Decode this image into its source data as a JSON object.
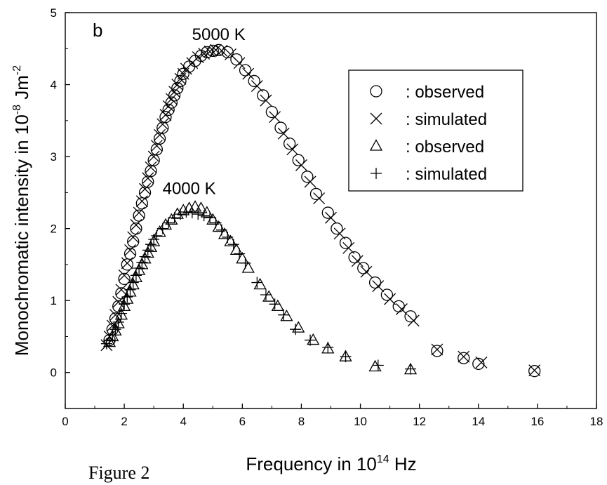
{
  "chart_data": {
    "type": "scatter",
    "panel_label": "b",
    "caption": "Figure 2",
    "xlabel": {
      "text": "Frequency in 10",
      "sup": "14",
      "tail": " Hz"
    },
    "ylabel": {
      "text": "Monochromatic intensity in 10",
      "sup": "-8",
      "tail": " Jm",
      "sup2": "-2"
    },
    "xlim": [
      0,
      18
    ],
    "ylim": [
      -0.5,
      5
    ],
    "xticks": [
      0,
      2,
      4,
      6,
      8,
      10,
      12,
      14,
      16,
      18
    ],
    "yticks": [
      0,
      1,
      2,
      3,
      4,
      5
    ],
    "grid": false,
    "legend_position": "top-right",
    "annotations": [
      {
        "text": "5000 K",
        "x": 5.2,
        "y": 4.62
      },
      {
        "text": "4000 K",
        "x": 4.2,
        "y": 2.48
      }
    ],
    "series": [
      {
        "name": ": observed",
        "marker": "circle",
        "x": [
          1.5,
          1.6,
          1.7,
          1.8,
          1.9,
          2.0,
          2.1,
          2.2,
          2.3,
          2.4,
          2.5,
          2.6,
          2.7,
          2.8,
          2.9,
          3.0,
          3.1,
          3.2,
          3.3,
          3.4,
          3.5,
          3.6,
          3.7,
          3.8,
          3.9,
          4.0,
          4.2,
          4.4,
          4.6,
          4.8,
          5.0,
          5.2,
          5.5,
          5.8,
          6.1,
          6.4,
          6.7,
          7.0,
          7.3,
          7.6,
          7.9,
          8.2,
          8.5,
          8.9,
          9.2,
          9.5,
          9.8,
          10.1,
          10.5,
          10.9,
          11.3,
          11.7,
          12.6,
          13.5,
          14.0,
          15.9
        ],
        "y": [
          0.45,
          0.6,
          0.75,
          0.92,
          1.1,
          1.3,
          1.5,
          1.65,
          1.82,
          2.0,
          2.18,
          2.35,
          2.5,
          2.65,
          2.8,
          2.95,
          3.1,
          3.25,
          3.4,
          3.55,
          3.65,
          3.75,
          3.85,
          3.95,
          4.05,
          4.15,
          4.25,
          4.33,
          4.4,
          4.45,
          4.47,
          4.48,
          4.45,
          4.35,
          4.2,
          4.05,
          3.85,
          3.62,
          3.4,
          3.18,
          2.95,
          2.72,
          2.48,
          2.22,
          2.0,
          1.8,
          1.6,
          1.45,
          1.25,
          1.08,
          0.92,
          0.78,
          0.3,
          0.2,
          0.12,
          0.02
        ]
      },
      {
        "name": ": simulated",
        "marker": "cross",
        "x": [
          1.4,
          1.5,
          1.6,
          1.7,
          1.8,
          1.9,
          2.0,
          2.1,
          2.2,
          2.3,
          2.4,
          2.5,
          2.6,
          2.7,
          2.8,
          2.9,
          3.0,
          3.1,
          3.2,
          3.3,
          3.4,
          3.5,
          3.6,
          3.7,
          3.8,
          3.9,
          4.0,
          4.1,
          4.3,
          4.5,
          4.7,
          4.9,
          5.1,
          5.3,
          5.6,
          5.9,
          6.2,
          6.5,
          6.8,
          7.1,
          7.4,
          7.7,
          8.0,
          8.3,
          8.6,
          9.0,
          9.3,
          9.6,
          9.9,
          10.2,
          10.6,
          11.0,
          11.4,
          11.8,
          12.6,
          13.5,
          14.1,
          15.9
        ],
        "y": [
          0.38,
          0.5,
          0.65,
          0.8,
          0.98,
          1.15,
          1.35,
          1.52,
          1.7,
          1.88,
          2.05,
          2.22,
          2.38,
          2.55,
          2.7,
          2.85,
          3.0,
          3.15,
          3.3,
          3.45,
          3.58,
          3.7,
          3.8,
          3.9,
          4.0,
          4.08,
          4.15,
          4.22,
          4.3,
          4.38,
          4.43,
          4.46,
          4.48,
          4.47,
          4.42,
          4.3,
          4.15,
          3.98,
          3.78,
          3.55,
          3.32,
          3.1,
          2.88,
          2.65,
          2.42,
          2.15,
          1.93,
          1.73,
          1.55,
          1.4,
          1.2,
          1.02,
          0.88,
          0.72,
          0.32,
          0.22,
          0.14,
          0.03
        ]
      },
      {
        "name": ": observed",
        "marker": "triangle",
        "x": [
          1.5,
          1.6,
          1.7,
          1.8,
          1.9,
          2.0,
          2.1,
          2.2,
          2.3,
          2.4,
          2.5,
          2.6,
          2.7,
          2.8,
          2.9,
          3.0,
          3.2,
          3.4,
          3.6,
          3.8,
          4.0,
          4.2,
          4.4,
          4.6,
          4.8,
          5.0,
          5.2,
          5.4,
          5.6,
          5.8,
          6.0,
          6.2,
          6.6,
          6.9,
          7.2,
          7.5,
          7.9,
          8.4,
          8.9,
          9.5,
          10.5,
          11.7
        ],
        "y": [
          0.42,
          0.5,
          0.58,
          0.68,
          0.8,
          0.92,
          1.02,
          1.12,
          1.22,
          1.32,
          1.42,
          1.5,
          1.58,
          1.66,
          1.74,
          1.82,
          1.95,
          2.05,
          2.12,
          2.2,
          2.25,
          2.28,
          2.3,
          2.28,
          2.22,
          2.12,
          2.02,
          1.92,
          1.82,
          1.7,
          1.58,
          1.45,
          1.22,
          1.05,
          0.92,
          0.78,
          0.62,
          0.45,
          0.33,
          0.22,
          0.08,
          0.04
        ]
      },
      {
        "name": ": simulated",
        "marker": "plus",
        "x": [
          1.4,
          1.5,
          1.6,
          1.7,
          1.8,
          1.9,
          2.0,
          2.1,
          2.2,
          2.3,
          2.4,
          2.5,
          2.6,
          2.7,
          2.8,
          2.9,
          3.0,
          3.1,
          3.3,
          3.5,
          3.7,
          3.9,
          4.1,
          4.3,
          4.5,
          4.7,
          4.9,
          5.1,
          5.3,
          5.5,
          5.7,
          5.9,
          6.1,
          6.5,
          6.8,
          7.1,
          7.4,
          7.8,
          8.3,
          8.9,
          9.5,
          10.6,
          11.7
        ],
        "y": [
          0.4,
          0.45,
          0.52,
          0.6,
          0.7,
          0.82,
          0.95,
          1.05,
          1.15,
          1.25,
          1.35,
          1.45,
          1.53,
          1.61,
          1.7,
          1.78,
          1.85,
          1.9,
          2.0,
          2.08,
          2.15,
          2.2,
          2.23,
          2.22,
          2.2,
          2.18,
          2.15,
          2.08,
          1.98,
          1.88,
          1.78,
          1.65,
          1.52,
          1.25,
          1.08,
          0.95,
          0.8,
          0.6,
          0.45,
          0.35,
          0.22,
          0.1,
          0.05
        ]
      }
    ]
  }
}
